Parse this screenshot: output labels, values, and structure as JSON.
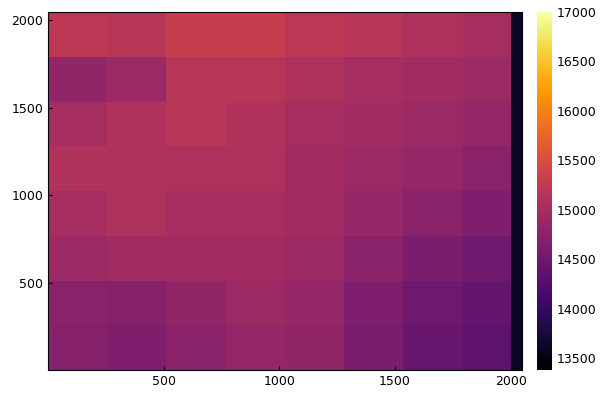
{
  "chart_data": {
    "type": "heatmap",
    "xlim": [
      1,
      2048
    ],
    "ylim": [
      1,
      2048
    ],
    "xticks": [
      500,
      1000,
      1500,
      2000
    ],
    "yticks": [
      500,
      1000,
      1500,
      2000
    ],
    "grid": false,
    "x_edges": [
      1,
      256,
      512,
      768,
      1024,
      1280,
      1536,
      1792,
      2000,
      2048
    ],
    "y_edges": [
      1,
      256,
      512,
      768,
      1024,
      1280,
      1536,
      1792,
      2048
    ],
    "cells": [
      [
        14700,
        14650,
        14750,
        14850,
        14800,
        14600,
        14450,
        14350,
        13600
      ],
      [
        14750,
        14700,
        14800,
        14900,
        14850,
        14650,
        14500,
        14400,
        13600
      ],
      [
        14900,
        14950,
        14950,
        14950,
        14900,
        14750,
        14600,
        14500,
        13600
      ],
      [
        15000,
        15050,
        15000,
        15000,
        14950,
        14850,
        14750,
        14650,
        13600
      ],
      [
        15100,
        15100,
        15050,
        15050,
        14950,
        14900,
        14850,
        14750,
        13600
      ],
      [
        15000,
        15100,
        15150,
        15100,
        15000,
        14950,
        14900,
        14850,
        13600
      ],
      [
        14800,
        14900,
        15150,
        15150,
        15050,
        15000,
        14950,
        14900,
        13600
      ],
      [
        15200,
        15150,
        15300,
        15300,
        15200,
        15150,
        15050,
        15000,
        13600
      ]
    ],
    "colorbar_range": [
      13380,
      17000
    ],
    "colorbar_ticks": [
      13500,
      14000,
      14500,
      15000,
      15500,
      16000,
      16500,
      17000
    ]
  }
}
